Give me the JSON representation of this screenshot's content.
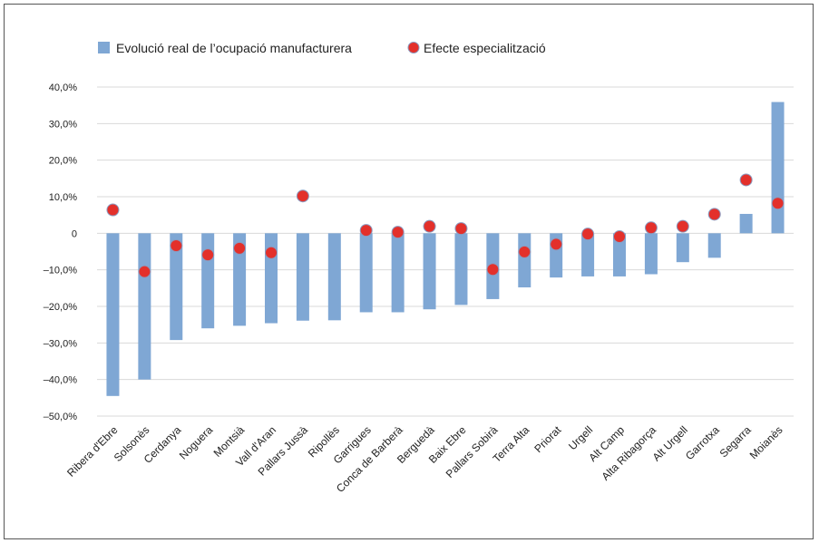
{
  "chart_data": {
    "type": "bar",
    "title": "",
    "xlabel": "",
    "ylabel": "",
    "ylim": [
      -50,
      40
    ],
    "y_ticks": [
      40,
      30,
      20,
      10,
      0,
      -10,
      -20,
      -30,
      -40,
      -50
    ],
    "y_tick_labels": [
      "40,0%",
      "30,0%",
      "20,0%",
      "10,0%",
      "0",
      "–10,0%",
      "–20,0%",
      "–30,0%",
      "–40,0%",
      "–50,0%"
    ],
    "grid": true,
    "legend_position": "top-left",
    "categories": [
      "Ribera d'Ebre",
      "Solsonès",
      "Cerdanya",
      "Noguera",
      "Montsià",
      "Vall d'Aran",
      "Pallars Jussà",
      "Ripollès",
      "Garrigues",
      "Conca de Barberà",
      "Berguedà",
      "Baix Ebre",
      "Pallars Sobirà",
      "Terra Alta",
      "Priorat",
      "Urgell",
      "Alt Camp",
      "Alta Ribagorça",
      "Alt Urgell",
      "Garrotxa",
      "Segarra",
      "Moianès"
    ],
    "series": [
      {
        "name": "Evolució real de l’ocupació manufacturera",
        "type": "bar",
        "color": "#7fa7d4",
        "values": [
          -44.5,
          -40.0,
          -29.2,
          -26.0,
          -25.3,
          -24.6,
          -23.9,
          -23.8,
          -21.6,
          -21.6,
          -20.8,
          -19.6,
          -18.0,
          -14.8,
          -12.1,
          -11.8,
          -11.8,
          -11.2,
          -7.9,
          -6.7,
          5.3,
          35.9
        ]
      },
      {
        "name": "Efecte especialització",
        "type": "scatter",
        "color": "#e3302b",
        "values": [
          6.4,
          -10.5,
          -3.4,
          -5.9,
          -4.1,
          -5.3,
          10.2,
          null,
          0.8,
          0.3,
          1.9,
          1.3,
          -9.9,
          -5.1,
          -3.0,
          -0.2,
          -0.9,
          1.5,
          1.9,
          5.2,
          14.6,
          8.2
        ]
      }
    ]
  }
}
